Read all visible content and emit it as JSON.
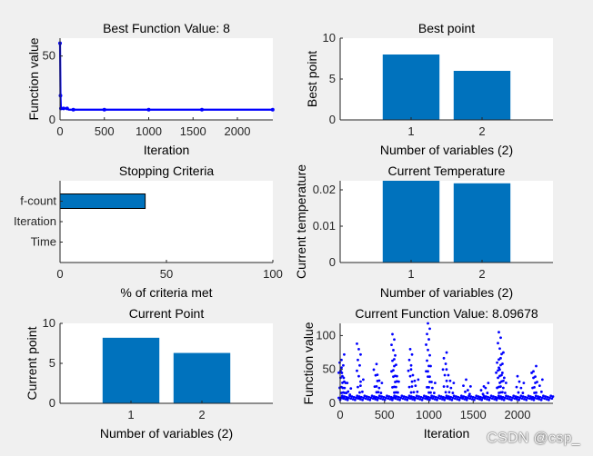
{
  "watermark": "CSDN @csp_",
  "colors": {
    "bar": "#0072bd",
    "trace": "#0000ff",
    "axes_bg": "#ffffff",
    "figure_bg": "#f0f0f0",
    "axis_line": "#262626"
  },
  "chart_data": [
    {
      "type": "line",
      "title": "Best Function Value: 8",
      "xlabel": "Iteration",
      "ylabel": "Function value",
      "xlim": [
        0,
        2400
      ],
      "ylim": [
        0,
        64
      ],
      "xticks": [
        0,
        500,
        1000,
        1500,
        2000
      ],
      "yticks": [
        0,
        50
      ],
      "x": [
        0,
        5,
        10,
        20,
        40,
        60,
        80,
        100,
        150,
        300,
        500,
        800,
        1000,
        1300,
        1600,
        2000,
        2398
      ],
      "y": [
        60,
        19,
        9,
        9,
        9,
        9,
        9,
        8,
        8,
        8,
        8,
        8,
        8,
        8,
        8,
        8,
        8
      ]
    },
    {
      "type": "bar",
      "title": "Best point",
      "xlabel": "Number of variables (2)",
      "ylabel": "Best point",
      "categories": [
        "1",
        "2"
      ],
      "values": [
        8,
        6
      ],
      "ylim": [
        0,
        10
      ],
      "yticks": [
        0,
        5,
        10
      ],
      "yticklabels": [
        "0",
        "5",
        "10"
      ]
    },
    {
      "type": "bar",
      "orientation": "horizontal",
      "title": "Stopping Criteria",
      "xlabel": "% of criteria met",
      "ylabel": "",
      "categories": [
        "f-count",
        "Iteration",
        "Time"
      ],
      "values": [
        40,
        0,
        0
      ],
      "xlim": [
        0,
        100
      ],
      "xticks": [
        0,
        50,
        100
      ]
    },
    {
      "type": "bar",
      "title": "Current Temperature",
      "xlabel": "Number of variables (2)",
      "ylabel": "Current temperature",
      "categories": [
        "1",
        "2"
      ],
      "values": [
        0.0225,
        0.0218
      ],
      "ylim": [
        0,
        0.0225
      ],
      "yticks": [
        0,
        0.01,
        0.02
      ],
      "yticklabels": [
        "0",
        "0.01",
        "0.02"
      ]
    },
    {
      "type": "bar",
      "title": "Current Point",
      "xlabel": "Number of variables (2)",
      "ylabel": "Current point",
      "categories": [
        "1",
        "2"
      ],
      "values": [
        8.2,
        6.3
      ],
      "ylim": [
        0,
        10
      ],
      "yticks": [
        0,
        5,
        10
      ],
      "yticklabels": [
        "0",
        "5",
        "10"
      ]
    },
    {
      "type": "scatter",
      "title": "Current Function Value: 8.09678",
      "xlabel": "Iteration",
      "ylabel": "Function value",
      "xlim": [
        0,
        2400
      ],
      "ylim": [
        0,
        118
      ],
      "xticks": [
        0,
        500,
        1000,
        1500,
        2000
      ],
      "yticks": [
        0,
        50,
        100
      ],
      "baseline": 8,
      "spike_x": [
        5,
        25,
        40,
        60,
        100,
        210,
        240,
        400,
        420,
        450,
        600,
        620,
        640,
        790,
        820,
        860,
        990,
        1010,
        1050,
        1180,
        1220,
        1260,
        1400,
        1450,
        1600,
        1650,
        1780,
        1800,
        1820,
        1850,
        2000,
        2050,
        2180,
        2200,
        2260
      ],
      "spike_y": [
        60,
        72,
        45,
        30,
        22,
        88,
        35,
        58,
        42,
        30,
        102,
        65,
        40,
        80,
        50,
        35,
        118,
        55,
        30,
        75,
        50,
        30,
        35,
        25,
        25,
        30,
        60,
        105,
        75,
        45,
        40,
        30,
        45,
        55,
        35
      ]
    }
  ]
}
